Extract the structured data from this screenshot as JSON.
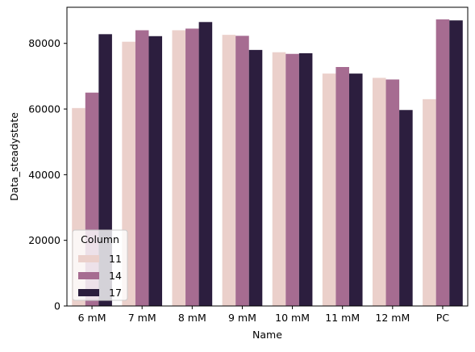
{
  "chart_data": {
    "type": "bar",
    "title": "",
    "xlabel": "Name",
    "ylabel": "Data_steadystate",
    "categories": [
      "6 mM",
      "7 mM",
      "8 mM",
      "9 mM",
      "10 mM",
      "11 mM",
      "12 mM",
      "PC"
    ],
    "series": [
      {
        "name": "11",
        "color": "#ebd0cb",
        "values": [
          60300,
          80500,
          84000,
          82600,
          77300,
          70800,
          69500,
          63000
        ]
      },
      {
        "name": "14",
        "color": "#a66c91",
        "values": [
          65000,
          84000,
          84500,
          82300,
          76800,
          72800,
          69000,
          87300
        ]
      },
      {
        "name": "17",
        "color": "#2c1e3e",
        "values": [
          82800,
          82200,
          86500,
          78000,
          77000,
          70800,
          59700,
          87000
        ]
      }
    ],
    "ylim": [
      0,
      91000
    ],
    "yticks": [
      0,
      20000,
      40000,
      60000,
      80000
    ],
    "grid": false,
    "legend": {
      "title": "Column",
      "placement": "lower-left"
    }
  }
}
